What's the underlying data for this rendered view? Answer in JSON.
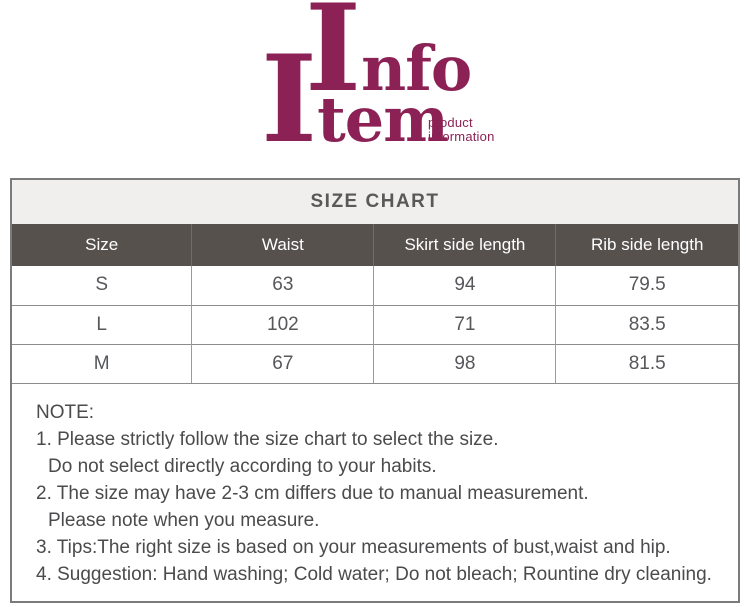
{
  "brand": {
    "word1_initial": "I",
    "word1_rest": "nfo",
    "word2_initial": "I",
    "word2_rest": "tem",
    "tagline_line1": "product",
    "tagline_line2": "information"
  },
  "size_chart": {
    "title": "SIZE CHART",
    "columns": [
      "Size",
      "Waist",
      "Skirt side length",
      "Rib side length"
    ],
    "rows": [
      [
        "S",
        "63",
        "94",
        "79.5"
      ],
      [
        "L",
        "102",
        "71",
        "83.5"
      ],
      [
        "M",
        "67",
        "98",
        "81.5"
      ]
    ]
  },
  "notes": {
    "heading": "NOTE:",
    "lines": [
      "1. Please strictly follow the size chart to select the size.",
      "Do not select directly according to your habits.",
      "2. The size may have 2-3 cm differs due to manual measurement.",
      "Please note when you measure.",
      "3. Tips:The right size is based on your measurements of bust,waist and hip.",
      "4. Suggestion: Hand washing; Cold water; Do not bleach; Rountine dry cleaning."
    ]
  },
  "colors": {
    "brand_magenta": "#8c2155",
    "title_bg": "#f0efee",
    "title_text": "#595959",
    "header_bg": "#57514e",
    "header_text": "#ffffff",
    "cell_text": "#56575b",
    "note_text": "#4b4b4d",
    "border_outer": "#7b7b7b",
    "border_inner": "#9b9b9b"
  }
}
